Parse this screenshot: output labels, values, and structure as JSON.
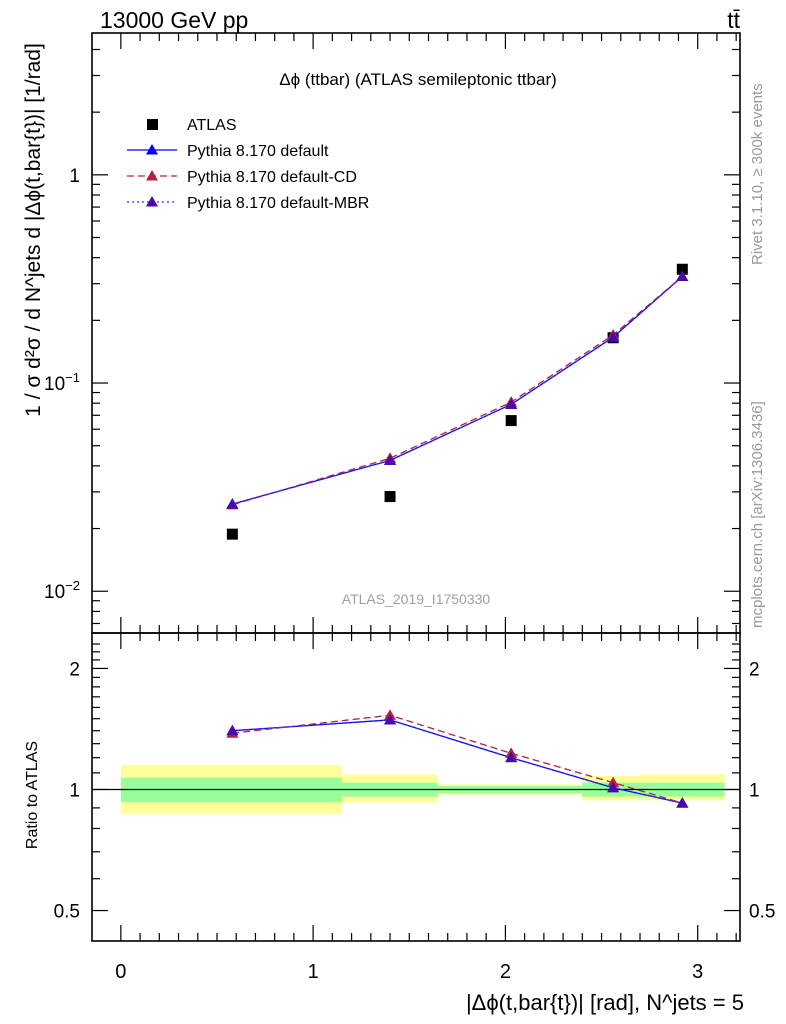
{
  "header": {
    "left": "13000 GeV pp",
    "right": "tt̄"
  },
  "side_labels": {
    "rivet": "Rivet 3.1.10, ≥ 300k events",
    "mcplots": "mcplots.cern.ch [arXiv:1306.3436]"
  },
  "chart_data": [
    {
      "type": "scatter",
      "panel": "main",
      "title": "Δϕ (ttbar) (ATLAS semileptonic ttbar)",
      "analysis_label": "ATLAS_2019_I1750330",
      "ylabel": "1 / σ d²σ / d N^jets d |Δϕ(t,bar{t})| [1/rad]",
      "yscale": "log",
      "ylim": [
        0.0063,
        4.8
      ],
      "xlim": [
        -0.15,
        3.22
      ],
      "yticks": [
        {
          "value": 0.01,
          "base": "10",
          "exp": "−2"
        },
        {
          "value": 0.1,
          "base": "10",
          "exp": "−1"
        },
        {
          "value": 1,
          "base": "1",
          "exp": ""
        }
      ],
      "legend_position": "top-left",
      "x": [
        0.58,
        1.4,
        2.03,
        2.56,
        2.92
      ],
      "series": [
        {
          "name": "ATLAS",
          "style": "marker",
          "marker": "square",
          "color": "#000000",
          "values": [
            0.0188,
            0.0285,
            0.066,
            0.165,
            0.352
          ]
        },
        {
          "name": "Pythia 8.170 default",
          "style": "solid",
          "marker": "triangle",
          "color": "#0000ff",
          "line_color": "#0000ff",
          "values": [
            0.0262,
            0.0425,
            0.079,
            0.166,
            0.325
          ]
        },
        {
          "name": "Pythia 8.170 default-CD",
          "style": "dashed",
          "marker": "triangle",
          "color": "#b22244",
          "line_color": "#b22244",
          "values": [
            0.026,
            0.0435,
            0.081,
            0.17,
            0.325
          ]
        },
        {
          "name": "Pythia 8.170 default-MBR",
          "style": "dotted",
          "marker": "triangle",
          "color": "#4b0aa8",
          "line_color": "#3030ff",
          "values": [
            0.0262,
            0.0425,
            0.079,
            0.166,
            0.325
          ]
        }
      ]
    },
    {
      "type": "line",
      "panel": "ratio",
      "ylabel": "Ratio to ATLAS",
      "xlabel": "|Δϕ(t,bar{t})| [rad], N^jets = 5",
      "yscale": "log",
      "ylim": [
        0.42,
        2.45
      ],
      "xlim": [
        -0.15,
        3.22
      ],
      "xticks": [
        "0",
        "1",
        "2",
        "3"
      ],
      "yticks": [
        "0.5",
        "1",
        "2"
      ],
      "uncertainty_bands": {
        "colors": {
          "inner": "#99ff99",
          "outer": "#ffff99"
        },
        "bins": [
          {
            "x0": 0.0,
            "x1": 1.15,
            "inner": [
              0.93,
              1.07
            ],
            "outer": [
              0.87,
              1.15
            ]
          },
          {
            "x0": 1.15,
            "x1": 1.65,
            "inner": [
              0.96,
              1.04
            ],
            "outer": [
              0.93,
              1.09
            ]
          },
          {
            "x0": 1.65,
            "x1": 2.4,
            "inner": [
              0.98,
              1.02
            ],
            "outer": [
              0.97,
              1.03
            ]
          },
          {
            "x0": 2.4,
            "x1": 2.7,
            "inner": [
              0.96,
              1.04
            ],
            "outer": [
              0.94,
              1.08
            ]
          },
          {
            "x0": 2.7,
            "x1": 3.14,
            "inner": [
              0.96,
              1.04
            ],
            "outer": [
              0.94,
              1.09
            ]
          }
        ]
      },
      "x": [
        0.58,
        1.4,
        2.03,
        2.56,
        2.92
      ],
      "series": [
        {
          "name": "Pythia 8.170 default",
          "style": "solid",
          "color": "#0000ff",
          "line_color": "#0000ff",
          "values": [
            1.4,
            1.49,
            1.2,
            1.01,
            0.925
          ]
        },
        {
          "name": "Pythia 8.170 default-CD",
          "style": "dashed",
          "color": "#b22244",
          "line_color": "#b22244",
          "values": [
            1.38,
            1.53,
            1.23,
            1.04,
            0.925
          ],
          "err_index": 1,
          "err": [
            1.49,
            1.57
          ]
        },
        {
          "name": "Pythia 8.170 default-MBR",
          "style": "dotted",
          "color": "#4b0aa8",
          "line_color": "#3030ff",
          "values": [
            1.4,
            1.49,
            1.2,
            1.01,
            0.925
          ]
        }
      ]
    }
  ]
}
